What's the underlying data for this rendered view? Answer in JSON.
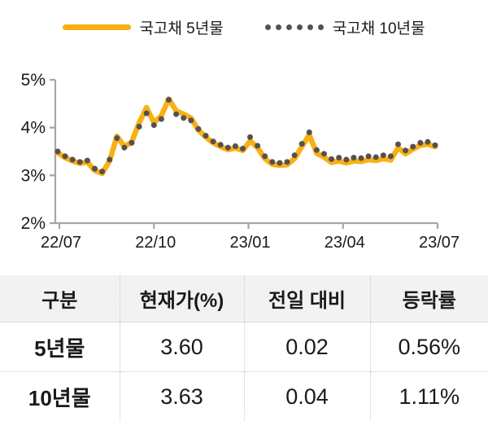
{
  "legend": {
    "series5": {
      "label": "국고채 5년물"
    },
    "series10": {
      "label": "국고채 10년물"
    }
  },
  "colors": {
    "line_5y": "#F9B013",
    "dots_10y": "#575050",
    "axis": "#A6A6A6",
    "text": "#1A1A1A",
    "table_header_bg": "#F2F2F2",
    "table_border": "#C9C9C9"
  },
  "chart_data": {
    "type": "line",
    "title": "",
    "xlabel": "",
    "ylabel": "",
    "grid": false,
    "legend_position": "top-center",
    "ylim": [
      2,
      5
    ],
    "y_tick_labels": [
      "5%",
      "4%",
      "3%",
      "2%"
    ],
    "y_tick_values": [
      5,
      4,
      3,
      2
    ],
    "x_tick_labels": [
      "22/07",
      "22/10",
      "23/01",
      "23/04",
      "23/07"
    ],
    "series": [
      {
        "name": "국고채 5년물",
        "style": "solid-line",
        "color": "#F9B013",
        "values": [
          3.47,
          3.37,
          3.3,
          3.25,
          3.28,
          3.1,
          3.04,
          3.3,
          3.82,
          3.6,
          3.7,
          4.1,
          4.42,
          4.1,
          4.25,
          4.6,
          4.35,
          4.28,
          4.2,
          3.95,
          3.8,
          3.68,
          3.6,
          3.54,
          3.57,
          3.52,
          3.72,
          3.58,
          3.35,
          3.23,
          3.21,
          3.22,
          3.35,
          3.6,
          3.85,
          3.46,
          3.38,
          3.27,
          3.3,
          3.26,
          3.3,
          3.29,
          3.33,
          3.31,
          3.35,
          3.32,
          3.58,
          3.45,
          3.55,
          3.63,
          3.65,
          3.6
        ]
      },
      {
        "name": "국고채 10년물",
        "style": "dots",
        "color": "#575050",
        "values": [
          3.5,
          3.4,
          3.33,
          3.28,
          3.31,
          3.14,
          3.08,
          3.33,
          3.78,
          3.58,
          3.68,
          4.02,
          4.3,
          4.05,
          4.18,
          4.58,
          4.28,
          4.2,
          4.15,
          3.97,
          3.83,
          3.71,
          3.64,
          3.58,
          3.61,
          3.56,
          3.8,
          3.62,
          3.4,
          3.28,
          3.26,
          3.28,
          3.42,
          3.66,
          3.9,
          3.53,
          3.45,
          3.34,
          3.37,
          3.33,
          3.37,
          3.36,
          3.4,
          3.38,
          3.42,
          3.4,
          3.65,
          3.52,
          3.6,
          3.68,
          3.7,
          3.63
        ]
      }
    ]
  },
  "table": {
    "headers": [
      "구분",
      "현재가(%)",
      "전일 대비",
      "등락률"
    ],
    "rows": [
      [
        "5년물",
        "3.60",
        "0.02",
        "0.56%"
      ],
      [
        "10년물",
        "3.63",
        "0.04",
        "1.11%"
      ]
    ]
  }
}
